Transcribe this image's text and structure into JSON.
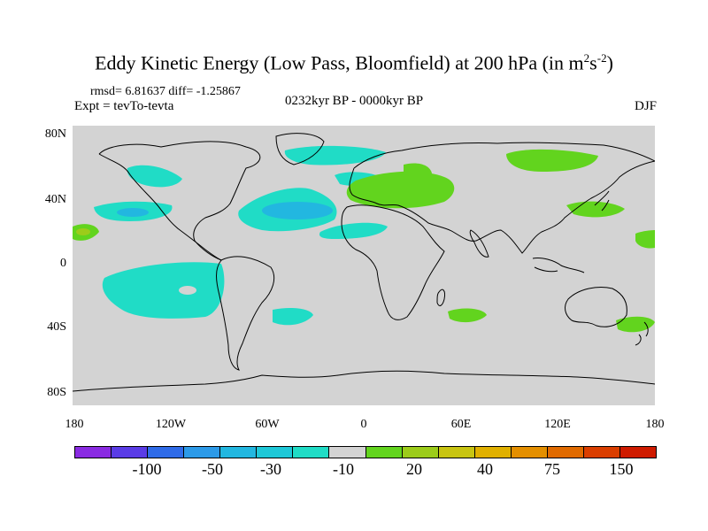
{
  "title": {
    "main": "Eddy Kinetic Energy (Low Pass, Bloomfield) at 200 hPa (in m",
    "sup1": "2",
    "mid": "s",
    "sup2": "-2",
    "end": ")"
  },
  "stats": "rmsd= 6.81637 diff= -1.25867",
  "experiment": "Expt = tevTo-tevta",
  "period": "0232kyr BP - 0000kyr BP",
  "season": "DJF",
  "y_axis": [
    "80N",
    "40N",
    "0",
    "40S",
    "80S"
  ],
  "x_axis": [
    "180",
    "120W",
    "60W",
    "0",
    "60E",
    "120E",
    "180"
  ],
  "colorbar": {
    "colors": [
      "#8a2be2",
      "#5a3ce6",
      "#2f6be8",
      "#2c9ae8",
      "#22b7e0",
      "#1ec8d8",
      "#20dcc6",
      "#d3d3d3",
      "#62d41e",
      "#9ccc1a",
      "#c8c412",
      "#e0b000",
      "#e48f00",
      "#e06a00",
      "#da3e00",
      "#cf1b00"
    ],
    "labels": [
      "-100",
      "-50",
      "-30",
      "-10",
      "20",
      "40",
      "75",
      "150"
    ]
  },
  "colors": {
    "ocean_land": "#d3d3d3",
    "negative_light": "#20dcc6",
    "negative_mid": "#22b7e0",
    "positive_light": "#62d41e",
    "positive_mid": "#9ccc1a"
  }
}
